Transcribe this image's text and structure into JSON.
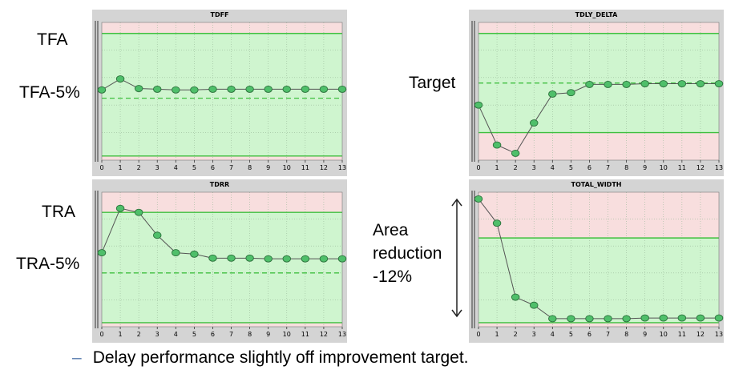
{
  "labels": {
    "tfa": "TFA",
    "tfa_minus": "TFA-5%",
    "tra": "TRA",
    "tra_minus": "TRA-5%",
    "target": "Target",
    "area_line1": "Area",
    "area_line2": "reduction",
    "area_line3": "-12%"
  },
  "bullet": {
    "marker": "–",
    "text": "Delay performance slightly off improvement target."
  },
  "colors": {
    "panel_bg": "#d4d4d4",
    "plot_fail": "#f8dede",
    "plot_pass": "#cff5cf",
    "limit_line": "#3fbf3f",
    "target_line": "#3fbf3f",
    "series_line": "#555555",
    "marker_fill": "#4fbf6a",
    "marker_stroke": "#2a6f3a"
  },
  "chart_data": [
    {
      "id": "tdff",
      "type": "line",
      "title": "TDFF",
      "x": [
        0,
        1,
        2,
        3,
        4,
        5,
        6,
        7,
        8,
        9,
        10,
        11,
        12,
        13
      ],
      "xticks": [
        "0",
        "1",
        "2",
        "3",
        "4",
        "5",
        "6",
        "7",
        "8",
        "9",
        "10",
        "11",
        "12",
        "13"
      ],
      "ylim": [
        0,
        100
      ],
      "pass_band": [
        3,
        92
      ],
      "limit_lines": [
        3,
        92
      ],
      "target_line": 45,
      "grid": true,
      "series": [
        {
          "values": [
            51,
            59,
            52,
            51.5,
            51,
            51,
            51.5,
            51.5,
            51.5,
            51.5,
            51.5,
            51.5,
            51.5,
            51.5
          ]
        }
      ]
    },
    {
      "id": "tdly_delta",
      "type": "line",
      "title": "TDLY_DELTA",
      "x": [
        0,
        1,
        2,
        3,
        4,
        5,
        6,
        7,
        8,
        9,
        10,
        11,
        12,
        13
      ],
      "xticks": [
        "0",
        "1",
        "2",
        "3",
        "4",
        "5",
        "6",
        "7",
        "8",
        "9",
        "10",
        "11",
        "12",
        "13"
      ],
      "ylim": [
        0,
        100
      ],
      "pass_band": [
        20,
        92
      ],
      "limit_lines": [
        20,
        92
      ],
      "target_line": 56,
      "grid": true,
      "series": [
        {
          "values": [
            40,
            11,
            5,
            27,
            48,
            49,
            55,
            55,
            55,
            55.5,
            55.5,
            55.5,
            55.5,
            55.5
          ]
        }
      ]
    },
    {
      "id": "tdrr",
      "type": "line",
      "title": "TDRR",
      "x": [
        0,
        1,
        2,
        3,
        4,
        5,
        6,
        7,
        8,
        9,
        10,
        11,
        12,
        13
      ],
      "xticks": [
        "0",
        "1",
        "2",
        "3",
        "4",
        "5",
        "6",
        "7",
        "8",
        "9",
        "10",
        "11",
        "12",
        "13"
      ],
      "ylim": [
        0,
        100
      ],
      "pass_band": [
        3,
        85
      ],
      "limit_lines": [
        3,
        85
      ],
      "target_line": 40,
      "grid": true,
      "series": [
        {
          "values": [
            55,
            88,
            85,
            68,
            55,
            54,
            51,
            51,
            51,
            50.5,
            50.5,
            50.5,
            50.5,
            50.5
          ]
        }
      ]
    },
    {
      "id": "total_width",
      "type": "line",
      "title": "TOTAL_WIDTH",
      "x": [
        0,
        1,
        2,
        3,
        4,
        5,
        6,
        7,
        8,
        9,
        10,
        11,
        12,
        13
      ],
      "xticks": [
        "0",
        "1",
        "2",
        "3",
        "4",
        "5",
        "6",
        "7",
        "8",
        "9",
        "10",
        "11",
        "12",
        "13"
      ],
      "ylim": [
        0,
        100
      ],
      "pass_band": [
        3,
        66
      ],
      "limit_lines": [
        3,
        66
      ],
      "target_line": null,
      "grid": true,
      "series": [
        {
          "values": [
            95,
            77,
            22,
            16,
            6,
            6,
            6,
            6,
            6,
            6.5,
            6.5,
            6.5,
            6.5,
            6.5
          ]
        }
      ]
    }
  ]
}
